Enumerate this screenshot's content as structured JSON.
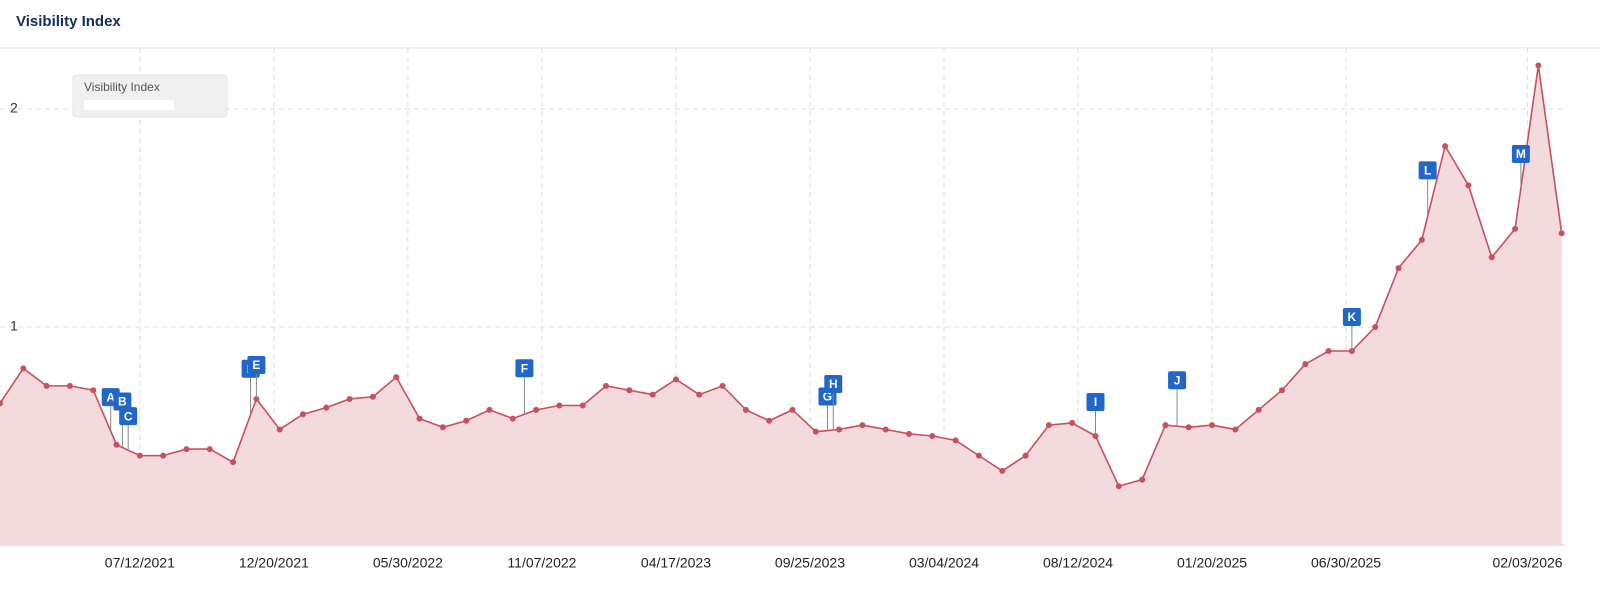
{
  "chart_data": {
    "type": "area",
    "title": "Visibility Index",
    "series": [
      {
        "name": "Visibility Index",
        "color": "#c8505f",
        "fill": "#f3dadd",
        "x": [
          "01/25/2021",
          "02/22/2021",
          "03/22/2021",
          "04/19/2021",
          "05/17/2021",
          "06/14/2021",
          "07/12/2021",
          "08/09/2021",
          "09/06/2021",
          "10/04/2021",
          "11/01/2021",
          "11/29/2021",
          "12/27/2021",
          "01/24/2022",
          "02/21/2022",
          "03/21/2022",
          "04/18/2022",
          "05/16/2022",
          "06/13/2022",
          "07/11/2022",
          "08/08/2022",
          "09/05/2022",
          "10/03/2022",
          "10/31/2022",
          "11/28/2022",
          "12/26/2022",
          "01/23/2023",
          "02/20/2023",
          "03/20/2023",
          "04/17/2023",
          "05/15/2023",
          "06/12/2023",
          "07/10/2023",
          "08/07/2023",
          "09/04/2023",
          "10/02/2023",
          "10/30/2023",
          "11/27/2023",
          "12/25/2023",
          "01/22/2024",
          "02/19/2024",
          "03/18/2024",
          "04/15/2024",
          "05/13/2024",
          "06/10/2024",
          "07/08/2024",
          "08/05/2024",
          "09/02/2024",
          "09/30/2024",
          "10/28/2024",
          "11/25/2024",
          "12/23/2024",
          "01/20/2025",
          "02/17/2025",
          "03/17/2025",
          "04/14/2025",
          "05/12/2025",
          "06/09/2025",
          "07/07/2025",
          "08/04/2025",
          "09/01/2025",
          "09/29/2025",
          "10/27/2025",
          "11/24/2025",
          "12/22/2025",
          "01/19/2026",
          "02/16/2026",
          "03/16/2026"
        ],
        "values": [
          0.65,
          0.81,
          0.73,
          0.73,
          0.71,
          0.46,
          0.41,
          0.41,
          0.44,
          0.44,
          0.38,
          0.67,
          0.53,
          0.6,
          0.63,
          0.67,
          0.68,
          0.77,
          0.58,
          0.54,
          0.57,
          0.62,
          0.58,
          0.62,
          0.64,
          0.64,
          0.73,
          0.71,
          0.69,
          0.76,
          0.69,
          0.73,
          0.62,
          0.57,
          0.62,
          0.52,
          0.53,
          0.55,
          0.53,
          0.51,
          0.5,
          0.48,
          0.41,
          0.34,
          0.41,
          0.55,
          0.56,
          0.5,
          0.27,
          0.3,
          0.55,
          0.54,
          0.55,
          0.53,
          0.62,
          0.71,
          0.83,
          0.89,
          0.89,
          1.0,
          1.27,
          1.4,
          1.83,
          1.65,
          1.32,
          1.45,
          2.2,
          1.43
        ]
      }
    ],
    "events": [
      {
        "label": "A",
        "x": "06/07/2021"
      },
      {
        "label": "B",
        "x": "06/21/2021"
      },
      {
        "label": "C",
        "x": "06/28/2021"
      },
      {
        "label": "D",
        "x": "11/22/2021"
      },
      {
        "label": "E",
        "x": "11/29/2021"
      },
      {
        "label": "F",
        "x": "10/17/2022"
      },
      {
        "label": "G",
        "x": "10/16/2023"
      },
      {
        "label": "H",
        "x": "10/23/2023"
      },
      {
        "label": "I",
        "x": "09/02/2024"
      },
      {
        "label": "J",
        "x": "12/09/2024"
      },
      {
        "label": "K",
        "x": "07/07/2025"
      },
      {
        "label": "L",
        "x": "10/06/2025"
      },
      {
        "label": "M",
        "x": "01/26/2026"
      }
    ],
    "xlim": [
      "01/25/2021",
      "03/20/2026"
    ],
    "xticks": [
      "07/12/2021",
      "12/20/2021",
      "05/30/2022",
      "11/07/2022",
      "04/17/2023",
      "09/25/2023",
      "03/04/2024",
      "08/12/2024",
      "01/20/2025",
      "06/30/2025",
      "02/03/2026"
    ],
    "ylim": [
      0,
      2.28
    ],
    "yticks": [
      1,
      2
    ],
    "grid": true
  }
}
